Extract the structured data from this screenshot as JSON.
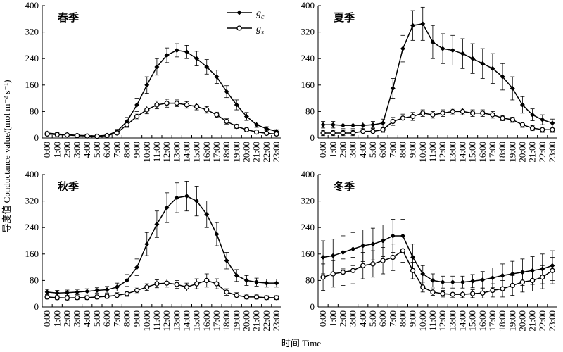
{
  "ylabel": "导度值 Conductance value/(mol m⁻² s⁻¹)",
  "xlabel": "时间 Time",
  "chart_data": [
    {
      "type": "line",
      "title": "春季",
      "legend": "upper right",
      "categories": [
        "0:00",
        "1:00",
        "2:00",
        "3:00",
        "4:00",
        "5:00",
        "6:00",
        "7:00",
        "8:00",
        "9:00",
        "10:00",
        "11:00",
        "12:00",
        "13:00",
        "14:00",
        "15:00",
        "16:00",
        "17:00",
        "18:00",
        "19:00",
        "20:00",
        "21:00",
        "22:00",
        "23:00"
      ],
      "ylim": [
        0,
        400
      ],
      "yticks": [
        0,
        80,
        160,
        240,
        320,
        400
      ],
      "series": [
        {
          "name": "gc",
          "color": "#000000",
          "marker": "diamond",
          "values": [
            15,
            12,
            10,
            8,
            7,
            6,
            8,
            20,
            50,
            100,
            160,
            215,
            250,
            265,
            260,
            240,
            215,
            185,
            140,
            100,
            65,
            40,
            28,
            20
          ],
          "errors": [
            4,
            4,
            3,
            3,
            3,
            2,
            3,
            6,
            12,
            20,
            25,
            25,
            22,
            20,
            20,
            22,
            22,
            20,
            18,
            15,
            12,
            8,
            6,
            5
          ]
        },
        {
          "name": "gs",
          "color": "#000000",
          "marker": "circle",
          "values": [
            12,
            10,
            9,
            7,
            6,
            5,
            7,
            15,
            40,
            65,
            85,
            100,
            105,
            105,
            100,
            95,
            85,
            70,
            50,
            35,
            25,
            18,
            14,
            12
          ],
          "errors": [
            3,
            3,
            2,
            2,
            2,
            2,
            2,
            4,
            8,
            10,
            12,
            12,
            12,
            10,
            10,
            10,
            10,
            8,
            8,
            6,
            5,
            4,
            3,
            3
          ]
        }
      ]
    },
    {
      "type": "line",
      "title": "夏季",
      "categories": [
        "0:00",
        "1:00",
        "2:00",
        "3:00",
        "4:00",
        "5:00",
        "6:00",
        "7:00",
        "8:00",
        "9:00",
        "10:00",
        "11:00",
        "12:00",
        "13:00",
        "14:00",
        "15:00",
        "16:00",
        "17:00",
        "18:00",
        "19:00",
        "20:00",
        "21:00",
        "22:00",
        "23:00"
      ],
      "ylim": [
        0,
        400
      ],
      "yticks": [
        0,
        80,
        160,
        240,
        320,
        400
      ],
      "series": [
        {
          "color": "#000000",
          "marker": "diamond",
          "values": [
            40,
            40,
            38,
            38,
            38,
            40,
            45,
            150,
            270,
            340,
            345,
            290,
            270,
            265,
            255,
            240,
            225,
            210,
            185,
            150,
            100,
            70,
            55,
            45
          ],
          "errors": [
            10,
            10,
            10,
            10,
            10,
            10,
            12,
            30,
            40,
            45,
            50,
            50,
            45,
            45,
            45,
            45,
            45,
            45,
            40,
            35,
            25,
            18,
            15,
            12
          ]
        },
        {
          "color": "#000000",
          "marker": "circle",
          "values": [
            15,
            15,
            15,
            15,
            20,
            20,
            25,
            50,
            60,
            65,
            75,
            70,
            75,
            80,
            80,
            75,
            75,
            70,
            60,
            55,
            40,
            30,
            25,
            25
          ],
          "errors": [
            8,
            8,
            8,
            8,
            8,
            8,
            8,
            12,
            12,
            12,
            10,
            10,
            10,
            10,
            10,
            10,
            10,
            10,
            8,
            8,
            8,
            8,
            8,
            8
          ]
        }
      ]
    },
    {
      "type": "line",
      "title": "秋季",
      "categories": [
        "0:00",
        "1:00",
        "2:00",
        "3:00",
        "4:00",
        "5:00",
        "6:00",
        "7:00",
        "8:00",
        "9:00",
        "10:00",
        "11:00",
        "12:00",
        "13:00",
        "14:00",
        "15:00",
        "16:00",
        "17:00",
        "18:00",
        "19:00",
        "20:00",
        "21:00",
        "22:00",
        "23:00"
      ],
      "ylim": [
        0,
        400
      ],
      "yticks": [
        0,
        80,
        160,
        240,
        320,
        400
      ],
      "series": [
        {
          "color": "#000000",
          "marker": "diamond",
          "values": [
            45,
            42,
            43,
            45,
            47,
            50,
            52,
            60,
            80,
            120,
            190,
            250,
            300,
            330,
            335,
            320,
            280,
            220,
            140,
            95,
            80,
            75,
            72,
            72
          ],
          "errors": [
            8,
            8,
            8,
            8,
            8,
            8,
            10,
            12,
            18,
            25,
            35,
            40,
            45,
            45,
            45,
            45,
            40,
            35,
            25,
            18,
            15,
            12,
            12,
            12
          ]
        },
        {
          "color": "#000000",
          "marker": "circle",
          "values": [
            30,
            28,
            27,
            28,
            28,
            30,
            32,
            35,
            40,
            50,
            60,
            70,
            72,
            68,
            60,
            70,
            80,
            70,
            45,
            35,
            30,
            30,
            28,
            28
          ],
          "errors": [
            6,
            6,
            6,
            6,
            6,
            6,
            6,
            8,
            8,
            10,
            10,
            12,
            12,
            12,
            12,
            15,
            20,
            15,
            10,
            8,
            6,
            6,
            6,
            6
          ]
        }
      ]
    },
    {
      "type": "line",
      "title": "冬季",
      "categories": [
        "0:00",
        "1:00",
        "2:00",
        "3:00",
        "4:00",
        "5:00",
        "6:00",
        "7:00",
        "8:00",
        "9:00",
        "10:00",
        "11:00",
        "12:00",
        "13:00",
        "14:00",
        "15:00",
        "16:00",
        "17:00",
        "18:00",
        "19:00",
        "20:00",
        "21:00",
        "22:00",
        "23:00"
      ],
      "ylim": [
        0,
        400
      ],
      "yticks": [
        0,
        80,
        160,
        240,
        320,
        400
      ],
      "series": [
        {
          "color": "#000000",
          "marker": "diamond",
          "values": [
            150,
            155,
            165,
            175,
            185,
            190,
            200,
            215,
            215,
            150,
            100,
            80,
            75,
            75,
            75,
            78,
            82,
            88,
            95,
            100,
            105,
            110,
            115,
            125
          ],
          "errors": [
            50,
            50,
            50,
            50,
            48,
            48,
            48,
            50,
            50,
            40,
            25,
            20,
            18,
            18,
            18,
            20,
            25,
            30,
            35,
            38,
            40,
            42,
            45,
            45
          ]
        },
        {
          "color": "#000000",
          "marker": "circle",
          "values": [
            90,
            100,
            105,
            110,
            125,
            130,
            140,
            150,
            170,
            110,
            60,
            45,
            40,
            38,
            38,
            40,
            42,
            50,
            55,
            65,
            75,
            80,
            90,
            110
          ],
          "errors": [
            40,
            40,
            40,
            40,
            40,
            40,
            40,
            40,
            35,
            25,
            15,
            10,
            10,
            10,
            10,
            12,
            15,
            20,
            25,
            30,
            30,
            32,
            35,
            40
          ]
        }
      ]
    }
  ]
}
